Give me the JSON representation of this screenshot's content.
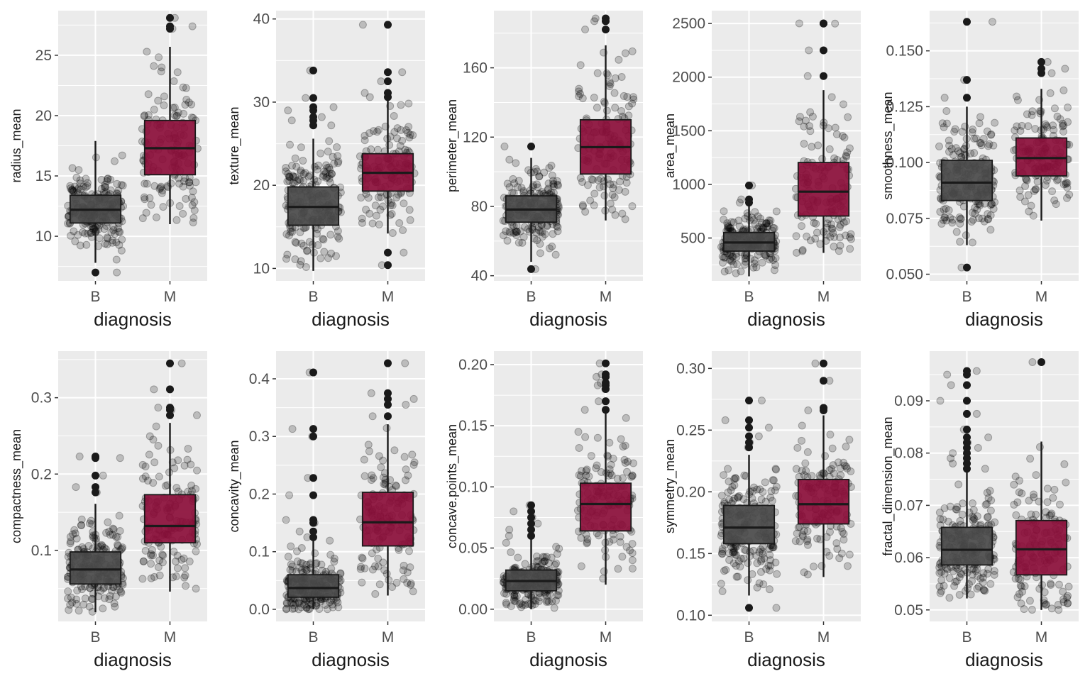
{
  "chart_data": [
    {
      "type": "box",
      "xlabel": "diagnosis",
      "ylabel": "radius_mean",
      "categories": [
        "B",
        "M"
      ],
      "yticks": [
        10,
        15,
        20,
        25
      ],
      "ylim": [
        6.3,
        28.7
      ],
      "colors": {
        "B": "#4a4a4a",
        "M": "#8b0e3a"
      },
      "boxes": [
        {
          "category": "B",
          "q1": 11.1,
          "median": 12.2,
          "q3": 13.4,
          "whisker_low": 7.8,
          "whisker_high": 17.9,
          "outliers": [
            7.0
          ]
        },
        {
          "category": "M",
          "q1": 15.1,
          "median": 17.3,
          "q3": 19.6,
          "whisker_low": 11.0,
          "whisker_high": 25.7,
          "outliers": [
            27.2,
            27.4,
            28.1
          ]
        }
      ]
    },
    {
      "type": "box",
      "xlabel": "diagnosis",
      "ylabel": "texture_mean",
      "categories": [
        "B",
        "M"
      ],
      "yticks": [
        10,
        20,
        30,
        40
      ],
      "ylim": [
        8.5,
        41.0
      ],
      "colors": {
        "B": "#4a4a4a",
        "M": "#8b0e3a"
      },
      "boxes": [
        {
          "category": "B",
          "q1": 15.2,
          "median": 17.4,
          "q3": 19.8,
          "whisker_low": 9.7,
          "whisker_high": 25.6,
          "outliers": [
            27.2,
            27.8,
            28.2,
            29.0,
            29.4,
            30.5,
            33.8
          ]
        },
        {
          "category": "M",
          "q1": 19.3,
          "median": 21.5,
          "q3": 23.8,
          "whisker_low": 14.2,
          "whisker_high": 30.3,
          "outliers": [
            10.4,
            11.9,
            30.6,
            31.1,
            32.5,
            33.6,
            39.3
          ]
        }
      ]
    },
    {
      "type": "box",
      "xlabel": "diagnosis",
      "ylabel": "perimeter_mean",
      "categories": [
        "B",
        "M"
      ],
      "yticks": [
        40,
        80,
        120,
        160
      ],
      "ylim": [
        37,
        193
      ],
      "colors": {
        "B": "#4a4a4a",
        "M": "#8b0e3a"
      },
      "boxes": [
        {
          "category": "B",
          "q1": 70.9,
          "median": 78.2,
          "q3": 86.1,
          "whisker_low": 48.0,
          "whisker_high": 108.0,
          "outliers": [
            43.8,
            114.6
          ]
        },
        {
          "category": "M",
          "q1": 98.7,
          "median": 114.2,
          "q3": 130.0,
          "whisker_low": 71.9,
          "whisker_high": 173.0,
          "outliers": [
            182.1,
            186.9,
            188.5
          ]
        }
      ]
    },
    {
      "type": "box",
      "xlabel": "diagnosis",
      "ylabel": "area_mean",
      "categories": [
        "B",
        "M"
      ],
      "yticks": [
        500,
        1000,
        1500,
        2000,
        2500
      ],
      "ylim": [
        100,
        2620
      ],
      "colors": {
        "B": "#4a4a4a",
        "M": "#8b0e3a"
      },
      "boxes": [
        {
          "category": "B",
          "q1": 378,
          "median": 458,
          "q3": 551,
          "whisker_low": 143,
          "whisker_high": 800,
          "outliers": [
            830,
            860,
            990
          ]
        },
        {
          "category": "M",
          "q1": 705,
          "median": 932,
          "q3": 1204,
          "whisker_low": 361,
          "whisker_high": 1878,
          "outliers": [
            2010,
            2250,
            2499,
            2501
          ]
        }
      ]
    },
    {
      "type": "box",
      "xlabel": "diagnosis",
      "ylabel": "smoothness_mean",
      "categories": [
        "B",
        "M"
      ],
      "yticks": [
        0.05,
        0.075,
        0.1,
        0.125,
        0.15
      ],
      "ylim": [
        0.047,
        0.168
      ],
      "colors": {
        "B": "#4a4a4a",
        "M": "#8b0e3a"
      },
      "boxes": [
        {
          "category": "B",
          "q1": 0.083,
          "median": 0.091,
          "q3": 0.101,
          "whisker_low": 0.063,
          "whisker_high": 0.125,
          "outliers": [
            0.053,
            0.129,
            0.137,
            0.163
          ]
        },
        {
          "category": "M",
          "q1": 0.094,
          "median": 0.102,
          "q3": 0.111,
          "whisker_low": 0.074,
          "whisker_high": 0.133,
          "outliers": [
            0.14,
            0.142,
            0.145
          ]
        }
      ]
    },
    {
      "type": "box",
      "xlabel": "diagnosis",
      "ylabel": "compactness_mean",
      "categories": [
        "B",
        "M"
      ],
      "yticks": [
        0.1,
        0.2,
        0.3
      ],
      "ylim": [
        0.007,
        0.361
      ],
      "colors": {
        "B": "#4a4a4a",
        "M": "#8b0e3a"
      },
      "boxes": [
        {
          "category": "B",
          "q1": 0.056,
          "median": 0.075,
          "q3": 0.098,
          "whisker_low": 0.019,
          "whisker_high": 0.161,
          "outliers": [
            0.176,
            0.183,
            0.198,
            0.221,
            0.223
          ]
        },
        {
          "category": "M",
          "q1": 0.11,
          "median": 0.132,
          "q3": 0.173,
          "whisker_low": 0.046,
          "whisker_high": 0.267,
          "outliers": [
            0.277,
            0.284,
            0.287,
            0.311,
            0.345
          ]
        }
      ]
    },
    {
      "type": "box",
      "xlabel": "diagnosis",
      "ylabel": "concavity_mean",
      "categories": [
        "B",
        "M"
      ],
      "yticks": [
        0.0,
        0.1,
        0.2,
        0.3,
        0.4
      ],
      "ylim": [
        -0.021,
        0.448
      ],
      "colors": {
        "B": "#4a4a4a",
        "M": "#8b0e3a"
      },
      "boxes": [
        {
          "category": "B",
          "q1": 0.021,
          "median": 0.037,
          "q3": 0.06,
          "whisker_low": 0.0,
          "whisker_high": 0.12,
          "outliers": [
            0.125,
            0.135,
            0.15,
            0.155,
            0.198,
            0.228,
            0.3,
            0.313,
            0.411
          ]
        },
        {
          "category": "M",
          "q1": 0.11,
          "median": 0.151,
          "q3": 0.203,
          "whisker_low": 0.024,
          "whisker_high": 0.321,
          "outliers": [
            0.335,
            0.355,
            0.365,
            0.375,
            0.427
          ]
        }
      ]
    },
    {
      "type": "box",
      "xlabel": "diagnosis",
      "ylabel": "concave.points_mean",
      "categories": [
        "B",
        "M"
      ],
      "yticks": [
        0.0,
        0.05,
        0.1,
        0.15,
        0.2
      ],
      "ylim": [
        -0.01,
        0.211
      ],
      "colors": {
        "B": "#4a4a4a",
        "M": "#8b0e3a"
      },
      "boxes": [
        {
          "category": "B",
          "q1": 0.015,
          "median": 0.023,
          "q3": 0.032,
          "whisker_low": 0.0,
          "whisker_high": 0.057,
          "outliers": [
            0.06,
            0.065,
            0.07,
            0.075,
            0.08,
            0.085
          ]
        },
        {
          "category": "M",
          "q1": 0.064,
          "median": 0.086,
          "q3": 0.103,
          "whisker_low": 0.02,
          "whisker_high": 0.16,
          "outliers": [
            0.163,
            0.17,
            0.18,
            0.183,
            0.185,
            0.19,
            0.192,
            0.201
          ]
        }
      ]
    },
    {
      "type": "box",
      "xlabel": "diagnosis",
      "ylabel": "symmetry_mean",
      "categories": [
        "B",
        "M"
      ],
      "yticks": [
        0.1,
        0.15,
        0.2,
        0.25,
        0.3
      ],
      "ylim": [
        0.095,
        0.314
      ],
      "colors": {
        "B": "#4a4a4a",
        "M": "#8b0e3a"
      },
      "boxes": [
        {
          "category": "B",
          "q1": 0.158,
          "median": 0.171,
          "q3": 0.189,
          "whisker_low": 0.116,
          "whisker_high": 0.23,
          "outliers": [
            0.106,
            0.236,
            0.24,
            0.245,
            0.252,
            0.258,
            0.274
          ]
        },
        {
          "category": "M",
          "q1": 0.174,
          "median": 0.19,
          "q3": 0.21,
          "whisker_low": 0.131,
          "whisker_high": 0.262,
          "outliers": [
            0.266,
            0.268,
            0.29,
            0.304
          ]
        }
      ]
    },
    {
      "type": "box",
      "xlabel": "diagnosis",
      "ylabel": "fractal_dimension_mean",
      "categories": [
        "B",
        "M"
      ],
      "yticks": [
        0.05,
        0.06,
        0.07,
        0.08,
        0.09
      ],
      "ylim": [
        0.0478,
        0.0995
      ],
      "colors": {
        "B": "#4a4a4a",
        "M": "#8b0e3a"
      },
      "boxes": [
        {
          "category": "B",
          "q1": 0.0586,
          "median": 0.0615,
          "q3": 0.0658,
          "whisker_low": 0.0522,
          "whisker_high": 0.0765,
          "outliers": [
            0.077,
            0.078,
            0.079,
            0.08,
            0.081,
            0.082,
            0.083,
            0.0845,
            0.0875,
            0.09,
            0.093,
            0.095,
            0.0957
          ]
        },
        {
          "category": "M",
          "q1": 0.0567,
          "median": 0.0616,
          "q3": 0.0671,
          "whisker_low": 0.05,
          "whisker_high": 0.0822,
          "outliers": [
            0.0974
          ]
        }
      ]
    }
  ]
}
